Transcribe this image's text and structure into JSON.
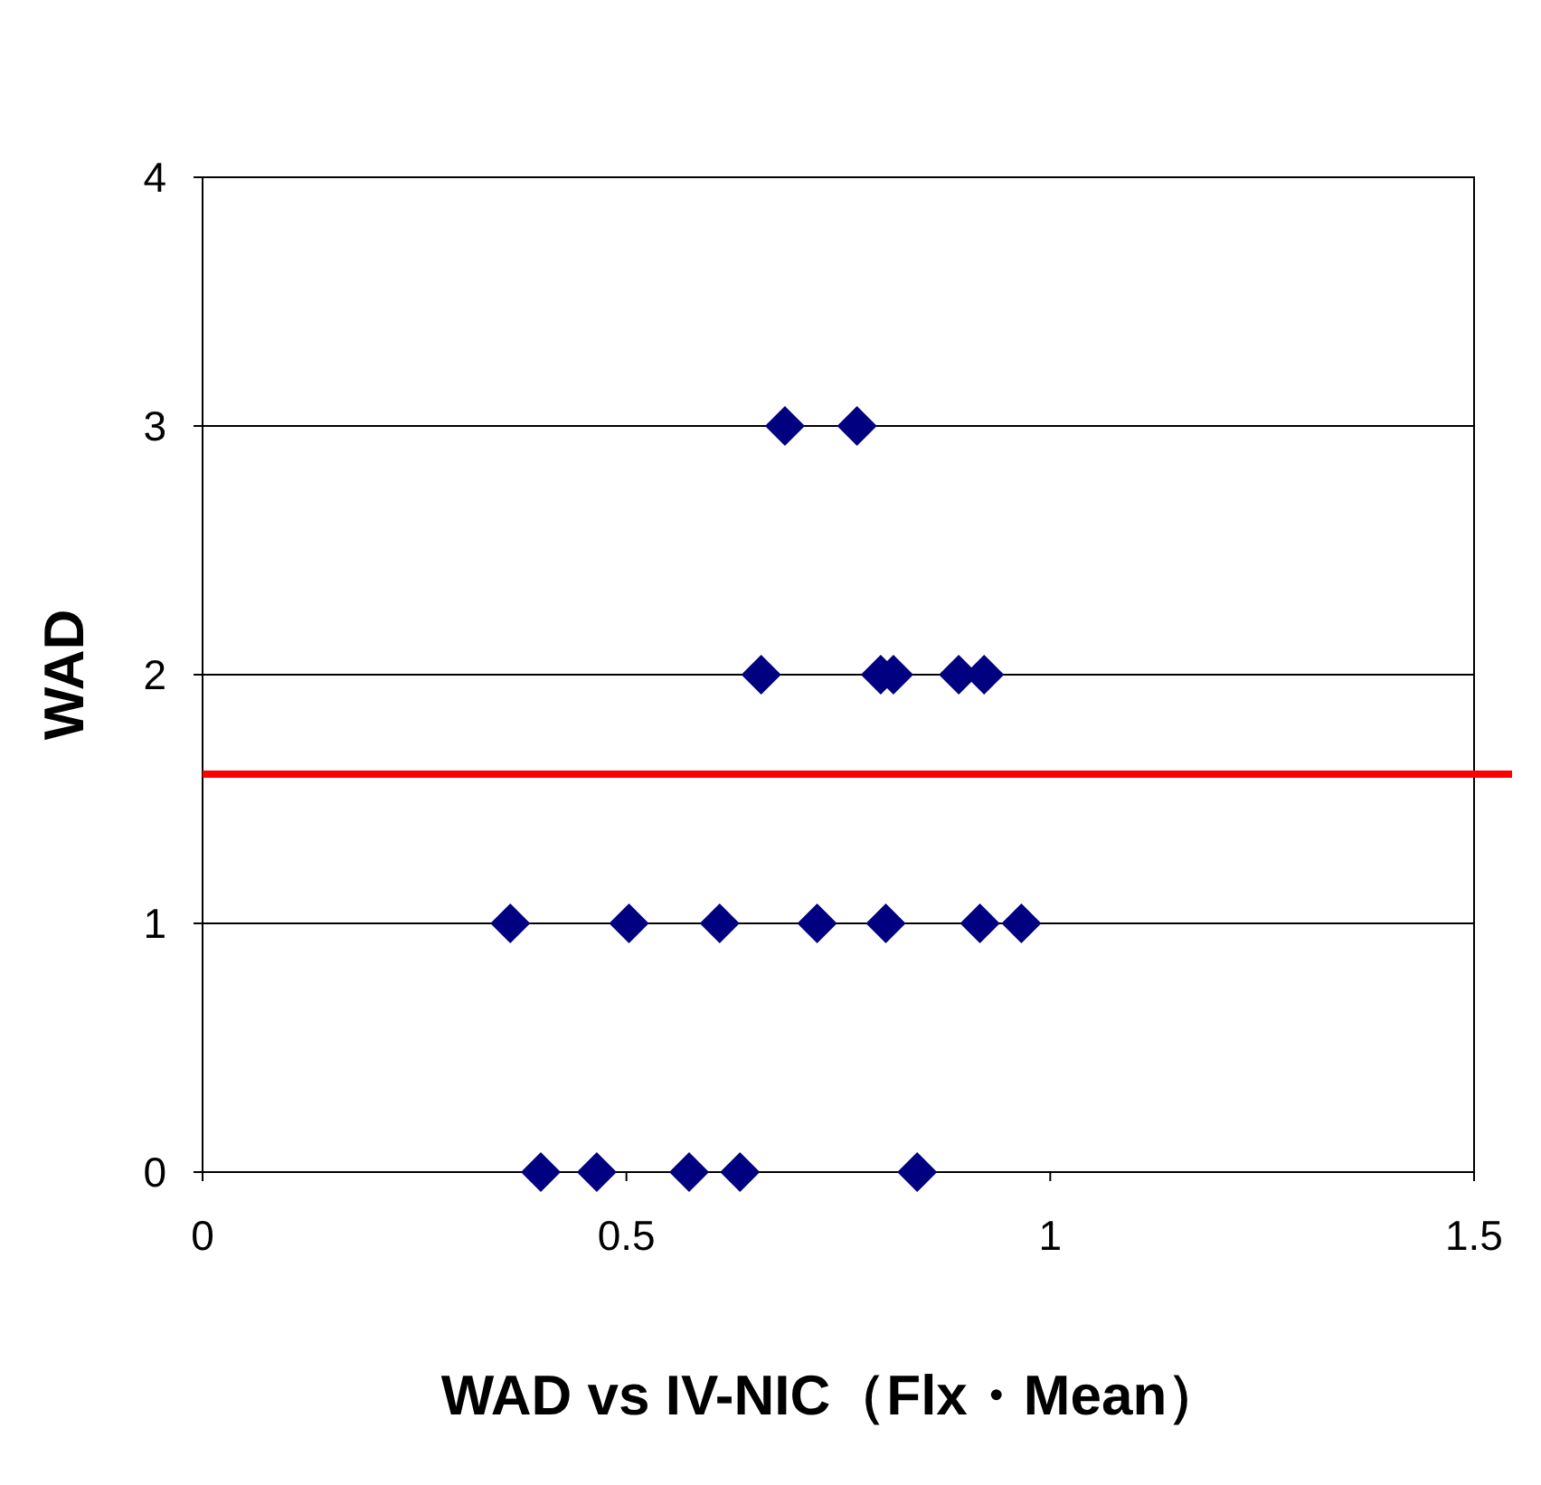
{
  "chart_data": {
    "type": "scatter",
    "xlabel": "WAD vs IV-NIC（Flx・Mean）",
    "ylabel": "WAD",
    "series": [
      {
        "color": "#000080",
        "x": [
          0.687,
          0.772,
          0.659,
          0.8,
          0.815,
          0.892,
          0.922,
          0.363,
          0.503,
          0.61,
          0.725,
          0.806,
          0.917,
          0.966,
          0.399,
          0.465,
          0.574,
          0.634,
          0.843
        ],
        "values": [
          3,
          3,
          2,
          2,
          2,
          2,
          2,
          1,
          1,
          1,
          1,
          1,
          1,
          1,
          0,
          0,
          0,
          0,
          0
        ]
      }
    ],
    "marker": "diamond",
    "xlim": [
      0,
      1.5
    ],
    "ylim": [
      0,
      4
    ],
    "xticks": [
      0,
      0.5,
      1,
      1.5
    ],
    "yticks": [
      0,
      1,
      2,
      3,
      4
    ],
    "grid": "y",
    "ref_lines": [
      {
        "axis": "y",
        "value": 1.6,
        "color": "#ff0000"
      }
    ]
  }
}
